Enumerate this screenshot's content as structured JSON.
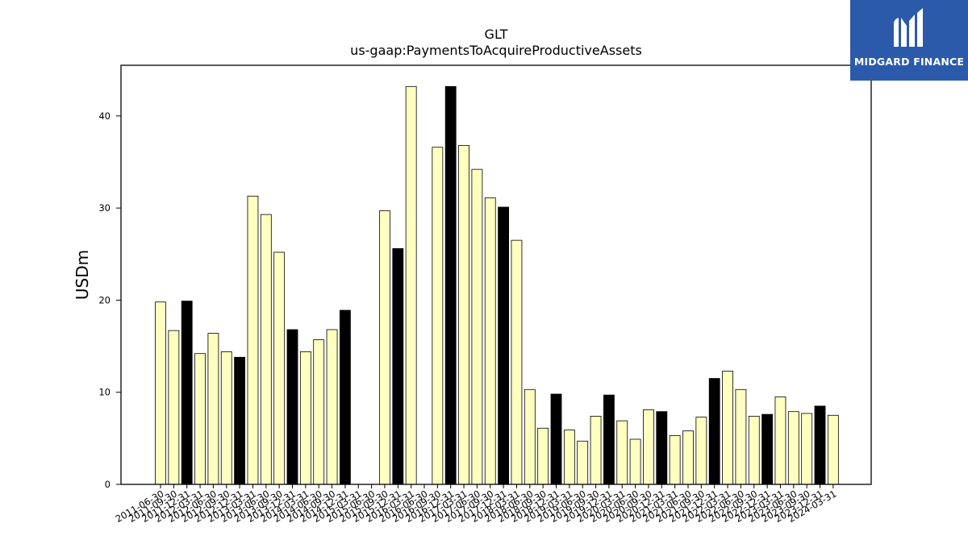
{
  "chart_data": {
    "type": "bar",
    "title": "GLT",
    "subtitle": "us-gaap:PaymentsToAcquireProductiveAssets",
    "ylabel": "USDm",
    "xlabel": "",
    "ylim": [
      0,
      45.5
    ],
    "yticks": [
      0,
      10,
      20,
      30,
      40
    ],
    "grid": false,
    "colors": {
      "quarter": "#ffffc0",
      "year_end": "#000000",
      "edge": "#000000"
    },
    "categories": [
      "2011-06-30",
      "2011-09-30",
      "2011-12-31",
      "2012-03-31",
      "2012-06-30",
      "2012-09-30",
      "2012-12-31",
      "2013-03-31",
      "2013-06-30",
      "2013-09-30",
      "2013-12-31",
      "2014-03-31",
      "2014-06-30",
      "2014-09-30",
      "2014-12-31",
      "2015-03-31",
      "2015-06-30",
      "2015-09-30",
      "2015-12-31",
      "2016-03-31",
      "2016-06-30",
      "2016-09-30",
      "2016-12-31",
      "2017-03-31",
      "2017-06-30",
      "2017-09-30",
      "2017-12-31",
      "2018-03-31",
      "2018-06-30",
      "2018-09-30",
      "2018-12-31",
      "2019-03-31",
      "2019-06-30",
      "2019-09-30",
      "2019-12-31",
      "2020-03-31",
      "2020-06-30",
      "2020-09-30",
      "2020-12-31",
      "2021-03-31",
      "2021-06-30",
      "2021-09-30",
      "2021-12-31",
      "2022-03-31",
      "2022-06-30",
      "2022-09-30",
      "2022-12-31",
      "2023-03-31",
      "2023-06-30",
      "2023-09-30",
      "2023-12-31",
      "2024-03-31"
    ],
    "values": [
      19.8,
      16.7,
      19.9,
      14.2,
      16.4,
      14.4,
      13.8,
      31.3,
      29.3,
      25.2,
      16.8,
      14.4,
      15.7,
      16.8,
      18.9,
      0,
      0,
      29.7,
      25.6,
      43.2,
      0,
      36.6,
      43.2,
      36.8,
      34.2,
      31.1,
      30.1,
      26.5,
      10.3,
      6.1,
      9.8,
      5.9,
      4.7,
      7.4,
      9.7,
      6.9,
      4.9,
      8.1,
      7.9,
      5.3,
      5.8,
      7.3,
      11.5,
      12.3,
      10.3,
      7.4,
      7.6,
      9.5,
      7.9,
      7.7,
      8.5,
      7.5
    ],
    "year_end": [
      false,
      false,
      true,
      false,
      false,
      false,
      true,
      false,
      false,
      false,
      true,
      false,
      false,
      false,
      true,
      false,
      false,
      false,
      true,
      false,
      false,
      false,
      true,
      false,
      false,
      false,
      true,
      false,
      false,
      false,
      true,
      false,
      false,
      false,
      true,
      false,
      false,
      false,
      true,
      false,
      false,
      false,
      true,
      false,
      false,
      false,
      true,
      false,
      false,
      false,
      true,
      false
    ]
  },
  "logo": {
    "text": "MIDGARD FINANCE",
    "icon": "midgard-logo-icon"
  }
}
